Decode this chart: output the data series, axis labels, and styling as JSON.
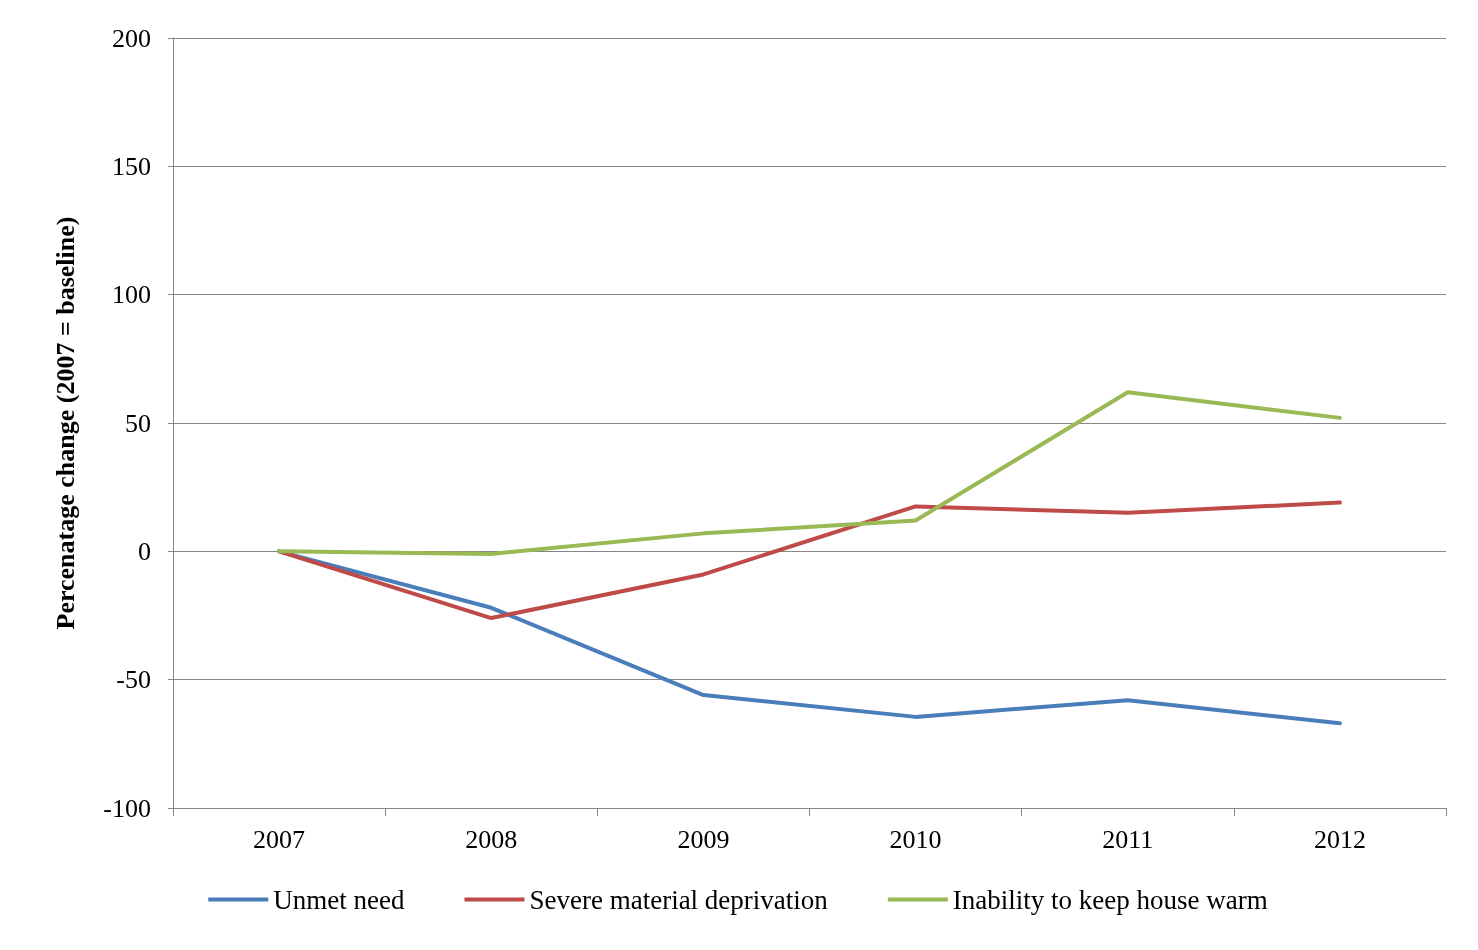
{
  "chart_data": {
    "type": "line",
    "ylabel": "Percenatage change (2007 = baseline)",
    "categories": [
      "2007",
      "2008",
      "2009",
      "2010",
      "2011",
      "2012"
    ],
    "series": [
      {
        "name": "Unmet need",
        "color": "#4a7ebb",
        "values": [
          0,
          -22,
          -56,
          -64.5,
          -58,
          -67
        ]
      },
      {
        "name": "Severe material deprivation",
        "color": "#be4b48",
        "values": [
          0,
          -26,
          -9,
          17.5,
          15,
          19
        ]
      },
      {
        "name": "Inability to keep house warm",
        "color": "#98b954",
        "values": [
          0,
          -1,
          7,
          12,
          62,
          52
        ]
      }
    ],
    "ylim": [
      -100,
      200
    ],
    "yticks": [
      -100,
      -50,
      0,
      50,
      100,
      150,
      200
    ],
    "grid": "y",
    "legend": "bottom",
    "marker": "none",
    "line_style": "solid"
  }
}
